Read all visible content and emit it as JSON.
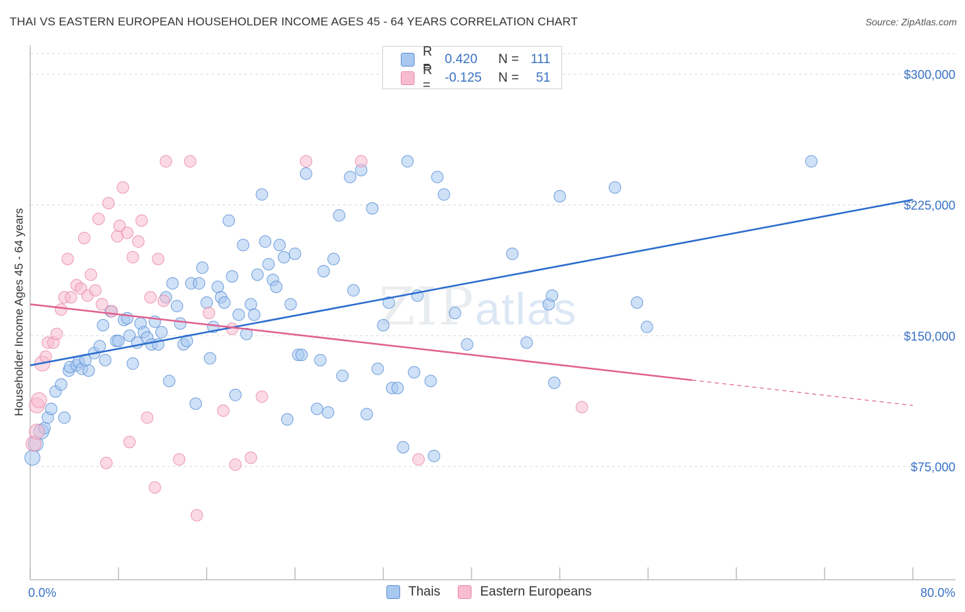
{
  "title": "THAI VS EASTERN EUROPEAN HOUSEHOLDER INCOME AGES 45 - 64 YEARS CORRELATION CHART",
  "source": "Source: ZipAtlas.com",
  "watermark": {
    "zip": "ZIP",
    "atlas": "atlas"
  },
  "legend_top": {
    "rows": [
      {
        "r_label": "R =",
        "r_value": "0.420",
        "n_label": "N =",
        "n_value": "111"
      },
      {
        "r_label": "R =",
        "r_value": "-0.125",
        "n_label": "N =",
        "n_value": "51"
      }
    ]
  },
  "legend_bottom": [
    "Thais",
    "Eastern Europeans"
  ],
  "colors": {
    "blue_fill": "#a8c8f0",
    "blue_stroke": "#5b8fd6",
    "blue_line": "#2b6cce",
    "pink_fill": "#f8bccf",
    "pink_stroke": "#e88aa8",
    "pink_line": "#e0628e",
    "tick_text": "#3a73c6",
    "grid": "#d9d9d9"
  },
  "chart_data": {
    "type": "scatter",
    "xlabel": "",
    "ylabel": "Householder Income Ages 45 - 64 years",
    "xlim": [
      0,
      80
    ],
    "ylim": [
      10000,
      315000
    ],
    "x_tick_labels": [
      "0.0%",
      "80.0%"
    ],
    "y_ticks": [
      75000,
      150000,
      225000,
      300000
    ],
    "y_tick_labels": [
      "$75,000",
      "$150,000",
      "$225,000",
      "$300,000"
    ],
    "grid": true,
    "series": [
      {
        "name": "Thais",
        "color": "blue",
        "points": [
          [
            0.2,
            80000
          ],
          [
            0.5,
            88000
          ],
          [
            1.0,
            95000
          ],
          [
            1.3,
            97000
          ],
          [
            1.6,
            103000
          ],
          [
            1.9,
            108000
          ],
          [
            2.3,
            118000
          ],
          [
            2.8,
            122000
          ],
          [
            3.1,
            103000
          ],
          [
            3.5,
            130000
          ],
          [
            3.6,
            132000
          ],
          [
            4.2,
            133000
          ],
          [
            4.4,
            135000
          ],
          [
            4.7,
            131000
          ],
          [
            5.3,
            130000
          ],
          [
            5.0,
            136000
          ],
          [
            5.8,
            140000
          ],
          [
            6.3,
            144000
          ],
          [
            6.6,
            156000
          ],
          [
            6.8,
            136000
          ],
          [
            7.3,
            164000
          ],
          [
            7.8,
            147000
          ],
          [
            8.0,
            147000
          ],
          [
            8.5,
            159000
          ],
          [
            8.8,
            160000
          ],
          [
            9.0,
            150000
          ],
          [
            9.3,
            134000
          ],
          [
            9.7,
            146000
          ],
          [
            10.0,
            157000
          ],
          [
            10.3,
            152000
          ],
          [
            10.6,
            149000
          ],
          [
            11.0,
            145000
          ],
          [
            11.3,
            158000
          ],
          [
            11.6,
            145000
          ],
          [
            11.9,
            152000
          ],
          [
            12.3,
            172000
          ],
          [
            12.6,
            124000
          ],
          [
            12.9,
            180000
          ],
          [
            13.3,
            167000
          ],
          [
            13.6,
            157000
          ],
          [
            13.9,
            145000
          ],
          [
            14.2,
            147000
          ],
          [
            14.6,
            180000
          ],
          [
            15.0,
            111000
          ],
          [
            15.3,
            180000
          ],
          [
            15.6,
            189000
          ],
          [
            16.0,
            169000
          ],
          [
            16.3,
            137000
          ],
          [
            16.6,
            155000
          ],
          [
            17.0,
            178000
          ],
          [
            17.3,
            172000
          ],
          [
            17.6,
            169000
          ],
          [
            18.0,
            216000
          ],
          [
            18.3,
            184000
          ],
          [
            18.6,
            116000
          ],
          [
            18.9,
            162000
          ],
          [
            19.3,
            202000
          ],
          [
            19.6,
            151000
          ],
          [
            20.0,
            168000
          ],
          [
            20.3,
            162000
          ],
          [
            20.6,
            185000
          ],
          [
            21.0,
            231000
          ],
          [
            21.3,
            204000
          ],
          [
            21.6,
            191000
          ],
          [
            22.0,
            182000
          ],
          [
            22.3,
            178000
          ],
          [
            22.6,
            202000
          ],
          [
            23.0,
            195000
          ],
          [
            23.3,
            102000
          ],
          [
            23.6,
            168000
          ],
          [
            24.0,
            197000
          ],
          [
            24.3,
            139000
          ],
          [
            24.6,
            139000
          ],
          [
            25.0,
            243000
          ],
          [
            26.0,
            108000
          ],
          [
            26.3,
            136000
          ],
          [
            26.6,
            187000
          ],
          [
            27.0,
            106000
          ],
          [
            27.5,
            194000
          ],
          [
            28.0,
            219000
          ],
          [
            28.3,
            127000
          ],
          [
            29.0,
            241000
          ],
          [
            29.3,
            176000
          ],
          [
            30.0,
            245000
          ],
          [
            30.5,
            105000
          ],
          [
            31.0,
            223000
          ],
          [
            31.5,
            131000
          ],
          [
            32.0,
            156000
          ],
          [
            32.5,
            169000
          ],
          [
            32.8,
            120000
          ],
          [
            33.3,
            120000
          ],
          [
            33.8,
            86000
          ],
          [
            34.2,
            250000
          ],
          [
            34.8,
            129000
          ],
          [
            35.1,
            173000
          ],
          [
            36.3,
            124000
          ],
          [
            36.6,
            81000
          ],
          [
            36.9,
            241000
          ],
          [
            37.5,
            231000
          ],
          [
            38.5,
            163000
          ],
          [
            39.6,
            145000
          ],
          [
            43.7,
            197000
          ],
          [
            45.0,
            146000
          ],
          [
            47.0,
            168000
          ],
          [
            47.3,
            173000
          ],
          [
            47.5,
            123000
          ],
          [
            48.0,
            230000
          ],
          [
            53.0,
            235000
          ],
          [
            55.0,
            169000
          ],
          [
            55.9,
            155000
          ],
          [
            70.8,
            250000
          ]
        ]
      },
      {
        "name": "Eastern Europeans",
        "color": "pink",
        "points": [
          [
            0.3,
            88000
          ],
          [
            0.6,
            95000
          ],
          [
            0.6,
            110000
          ],
          [
            0.8,
            113000
          ],
          [
            1.1,
            134000
          ],
          [
            1.4,
            138000
          ],
          [
            1.6,
            146000
          ],
          [
            2.1,
            146000
          ],
          [
            2.4,
            151000
          ],
          [
            2.8,
            165000
          ],
          [
            3.1,
            172000
          ],
          [
            3.4,
            194000
          ],
          [
            3.7,
            172000
          ],
          [
            4.2,
            179000
          ],
          [
            4.6,
            177000
          ],
          [
            4.9,
            206000
          ],
          [
            5.2,
            173000
          ],
          [
            5.5,
            185000
          ],
          [
            5.9,
            176000
          ],
          [
            6.2,
            217000
          ],
          [
            6.5,
            168000
          ],
          [
            6.9,
            77000
          ],
          [
            7.1,
            226000
          ],
          [
            7.4,
            164000
          ],
          [
            7.9,
            207000
          ],
          [
            8.1,
            213000
          ],
          [
            8.4,
            235000
          ],
          [
            8.8,
            209000
          ],
          [
            9.0,
            89000
          ],
          [
            9.3,
            195000
          ],
          [
            9.8,
            204000
          ],
          [
            10.1,
            216000
          ],
          [
            10.6,
            103000
          ],
          [
            10.9,
            172000
          ],
          [
            11.3,
            63000
          ],
          [
            11.6,
            194000
          ],
          [
            12.1,
            170000
          ],
          [
            12.3,
            250000
          ],
          [
            13.5,
            79000
          ],
          [
            14.5,
            250000
          ],
          [
            15.1,
            47000
          ],
          [
            16.2,
            163000
          ],
          [
            17.5,
            107000
          ],
          [
            18.3,
            154000
          ],
          [
            18.6,
            76000
          ],
          [
            20.0,
            80000
          ],
          [
            21.0,
            115000
          ],
          [
            25.0,
            250000
          ],
          [
            30.0,
            250000
          ],
          [
            35.2,
            79000
          ],
          [
            50.0,
            109000
          ]
        ]
      }
    ],
    "trendlines": [
      {
        "series": "Thais",
        "x": [
          0,
          80
        ],
        "y": [
          133000,
          228000
        ]
      },
      {
        "series": "Eastern Europeans",
        "x": [
          0,
          80
        ],
        "y": [
          168000,
          110000
        ],
        "solid_until_x": 60
      }
    ]
  }
}
